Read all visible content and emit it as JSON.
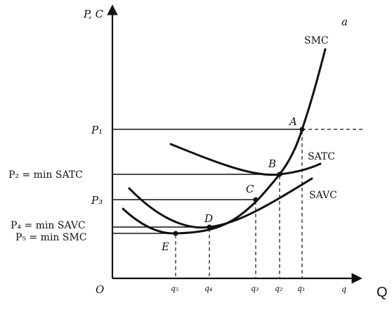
{
  "figure": {
    "panel_label": "a",
    "y_axis_label": "P, C",
    "x_axis_label": "q",
    "origin_label": "O"
  },
  "price_labels": {
    "p1": "P₁",
    "p2": "P₂ = min SATC",
    "p3": "P₃",
    "p4": "P₄ = min SAVC",
    "p5": "P₅ = min SMC"
  },
  "quantity_labels": {
    "q5": "q₅",
    "q4": "q₄",
    "q3": "q₃",
    "q2": "q₂",
    "q1": "q₁"
  },
  "points": {
    "a": "A",
    "b": "B",
    "c": "C",
    "d": "D",
    "e": "E"
  },
  "curves": {
    "smc": "SMC",
    "satc": "SATC",
    "savc": "SAVC"
  },
  "trailing_text": "Q"
}
